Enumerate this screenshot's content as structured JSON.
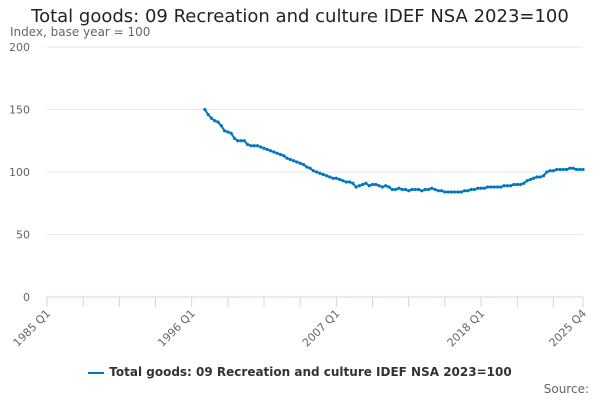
{
  "chart_data": {
    "type": "line",
    "title": "Total goods: 09 Recreation and culture IDEF NSA 2023=100",
    "ylabel": "Index, base year = 100",
    "xlabel": "",
    "source_label": "Source:",
    "ylim": [
      0,
      200
    ],
    "y_ticks": [
      0,
      50,
      100,
      150,
      200
    ],
    "x_range": [
      "1985 Q1",
      "2025 Q4"
    ],
    "x_tick_labels": [
      "1985 Q1",
      "1996 Q1",
      "2007 Q1",
      "2018 Q1",
      "2025 Q4"
    ],
    "grid": true,
    "legend_position": "bottom",
    "series": [
      {
        "name": "Total goods: 09 Recreation and culture IDEF NSA 2023=100",
        "color": "#0077c0",
        "start": "1997 Q1",
        "values": [
          150,
          146,
          143,
          141,
          140,
          137,
          133,
          132,
          131,
          127,
          125,
          125,
          125,
          122,
          121,
          121,
          121,
          120,
          119,
          118,
          117,
          116,
          115,
          114,
          113,
          111,
          110,
          109,
          108,
          107,
          106,
          104,
          103,
          101,
          100,
          99,
          98,
          97,
          96,
          95,
          95,
          94,
          93,
          92,
          92,
          91,
          88,
          89,
          90,
          91,
          89,
          90,
          90,
          89,
          88,
          89,
          88,
          86,
          86,
          87,
          86,
          86,
          85,
          86,
          86,
          86,
          85,
          86,
          86,
          87,
          86,
          85,
          85,
          84,
          84,
          84,
          84,
          84,
          84,
          85,
          85,
          86,
          86,
          87,
          87,
          87,
          88,
          88,
          88,
          88,
          88,
          89,
          89,
          89,
          90,
          90,
          90,
          91,
          93,
          94,
          95,
          96,
          96,
          97,
          100,
          101,
          101,
          102,
          102,
          102,
          102,
          103,
          103,
          102,
          102,
          102
        ]
      }
    ]
  }
}
